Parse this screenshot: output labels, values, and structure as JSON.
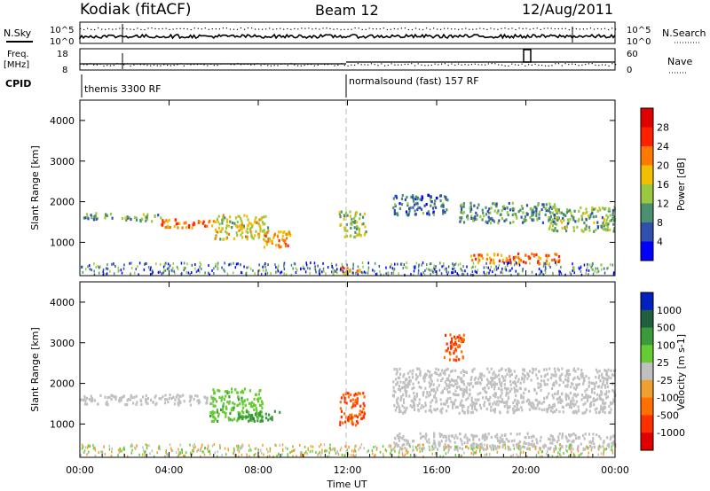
{
  "header": {
    "radar": "Kodiak (fitACF)",
    "beam": "Beam 12",
    "date": "12/Aug/2011"
  },
  "strip": {
    "nsky_label": "N.Sky",
    "nsearch_label": "N.Search",
    "noise_ticks": [
      "10^5",
      "10^0"
    ],
    "freq_label_1": "Freq.",
    "freq_label_2": "[MHz]",
    "freq_ticks": [
      "18",
      "8"
    ],
    "nave_label": "Nave",
    "nave_ticks": [
      "60",
      "0"
    ],
    "cpid_label": "CPID",
    "cpid_segments": [
      "themis 3300 RF",
      "normalsound (fast) 157 RF"
    ]
  },
  "chart_data": [
    {
      "type": "heatmap",
      "panel": "power",
      "ylabel": "Slant Range [km]",
      "ylim": [
        180,
        4500
      ],
      "xlim": [
        0,
        24
      ],
      "yticks": [
        "1000",
        "2000",
        "3000",
        "4000"
      ],
      "colorbar_label": "Power [dB]",
      "colorbar_ticks": [
        "4",
        "8",
        "12",
        "16",
        "20",
        "24",
        "28"
      ],
      "colors": [
        "#0000ff",
        "#3050b0",
        "#4a9070",
        "#9bc843",
        "#f0c000",
        "#ff7800",
        "#ff2000",
        "#e00000"
      ],
      "features": [
        {
          "x": [
            0.0,
            1.6
          ],
          "y": [
            1580,
            1750
          ],
          "value": 10
        },
        {
          "x": [
            1.6,
            3.6
          ],
          "y": [
            1550,
            1720
          ],
          "value": 12
        },
        {
          "x": [
            3.6,
            6.0
          ],
          "y": [
            1380,
            1600
          ],
          "value": 22
        },
        {
          "x": [
            6.0,
            8.5
          ],
          "y": [
            1100,
            1700
          ],
          "value": 16
        },
        {
          "x": [
            8.2,
            9.5
          ],
          "y": [
            900,
            1300
          ],
          "value": 20
        },
        {
          "x": [
            11.6,
            12.8
          ],
          "y": [
            1150,
            1800
          ],
          "value": 14
        },
        {
          "x": [
            11.4,
            12.6
          ],
          "y": [
            250,
            400
          ],
          "value": 20
        },
        {
          "x": [
            14.0,
            16.5
          ],
          "y": [
            1700,
            2200
          ],
          "value": 8
        },
        {
          "x": [
            17.0,
            21.5
          ],
          "y": [
            1500,
            2000
          ],
          "value": 10
        },
        {
          "x": [
            17.5,
            21.5
          ],
          "y": [
            500,
            750
          ],
          "value": 22
        },
        {
          "x": [
            21.0,
            24.0
          ],
          "y": [
            1300,
            1900
          ],
          "value": 12
        }
      ]
    },
    {
      "type": "heatmap",
      "panel": "velocity",
      "ylabel": "Slant Range [km]",
      "xlabel": "Time UT",
      "ylim": [
        180,
        4500
      ],
      "xlim": [
        0,
        24
      ],
      "yticks": [
        "1000",
        "2000",
        "3000",
        "4000"
      ],
      "xticks": [
        "00:00",
        "04:00",
        "08:00",
        "12:00",
        "16:00",
        "20:00",
        "00:00"
      ],
      "colorbar_label": "Velocity [m s-1]",
      "colorbar_ticks": [
        "1000",
        "500",
        "100",
        "25",
        "-25",
        "-100",
        "-500",
        "-1000"
      ],
      "colors": [
        "#0020c0",
        "#206040",
        "#3b9a3b",
        "#66cc33",
        "#c0c0c0",
        "#f0a030",
        "#ff7000",
        "#ff3000",
        "#e00000"
      ],
      "features": [
        {
          "x": [
            0.0,
            6.0
          ],
          "y": [
            1500,
            1750
          ],
          "value": 0
        },
        {
          "x": [
            5.8,
            8.2
          ],
          "y": [
            1100,
            1900
          ],
          "value": 80
        },
        {
          "x": [
            7.0,
            9.0
          ],
          "y": [
            1100,
            1350
          ],
          "value": 400
        },
        {
          "x": [
            11.6,
            12.8
          ],
          "y": [
            1000,
            1800
          ],
          "value": -500
        },
        {
          "x": [
            14.0,
            24.0
          ],
          "y": [
            1300,
            2400
          ],
          "value": 0
        },
        {
          "x": [
            16.3,
            17.2
          ],
          "y": [
            2600,
            3300
          ],
          "value": -500
        },
        {
          "x": [
            14.0,
            24.0
          ],
          "y": [
            400,
            800
          ],
          "value": 0
        }
      ]
    }
  ]
}
